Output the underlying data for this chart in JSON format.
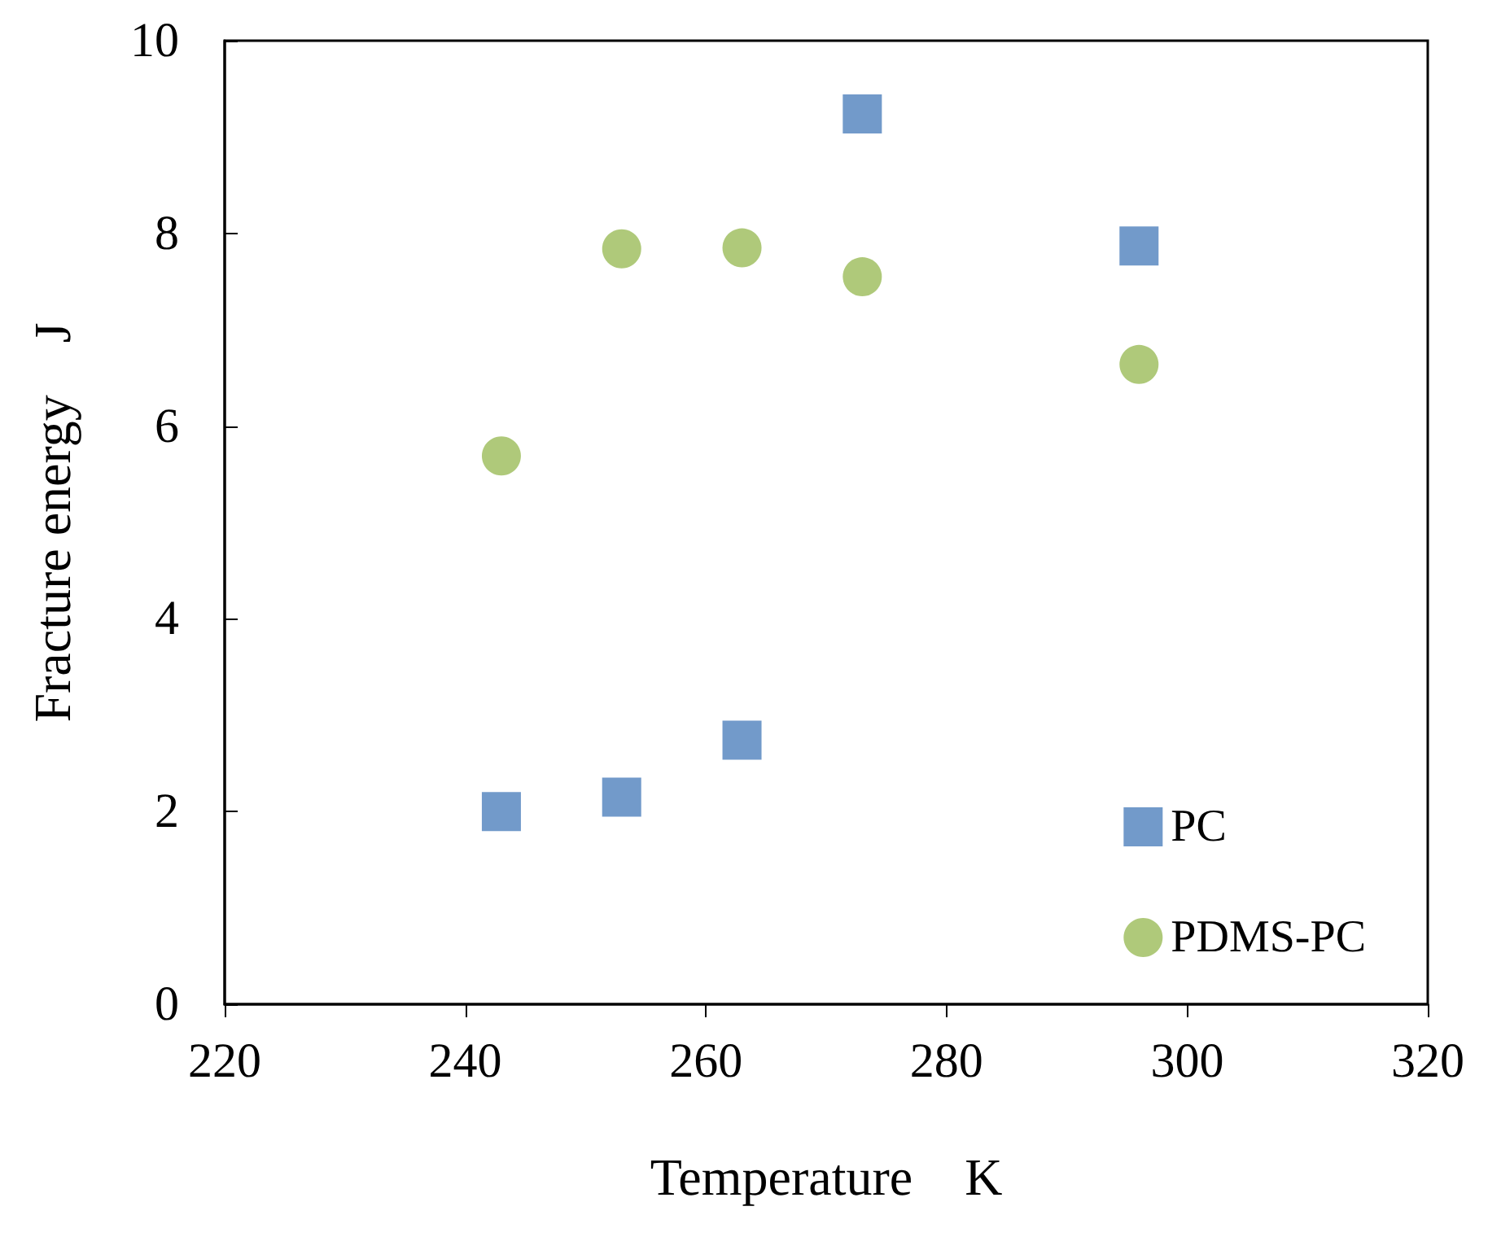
{
  "chart_data": {
    "type": "scatter",
    "xlabel": "Temperature　K",
    "ylabel": "Fracture energy　J",
    "xlim": [
      220,
      320
    ],
    "xticks": [
      220,
      240,
      260,
      280,
      300,
      320
    ],
    "ylim": [
      0,
      10
    ],
    "yticks": [
      0,
      2,
      4,
      6,
      8,
      10
    ],
    "grid": false,
    "legend": "bottom right",
    "x": [
      243,
      253,
      263,
      273,
      296
    ],
    "series": [
      {
        "name": "PC",
        "color": "#4f81bd",
        "marker": "square",
        "values": [
          2.0,
          2.15,
          2.74,
          9.24,
          7.87
        ]
      },
      {
        "name": "PDMS-PC",
        "color": "#9bbb59",
        "marker": "circle",
        "values": [
          5.69,
          7.84,
          7.85,
          7.55,
          6.64
        ]
      }
    ]
  }
}
